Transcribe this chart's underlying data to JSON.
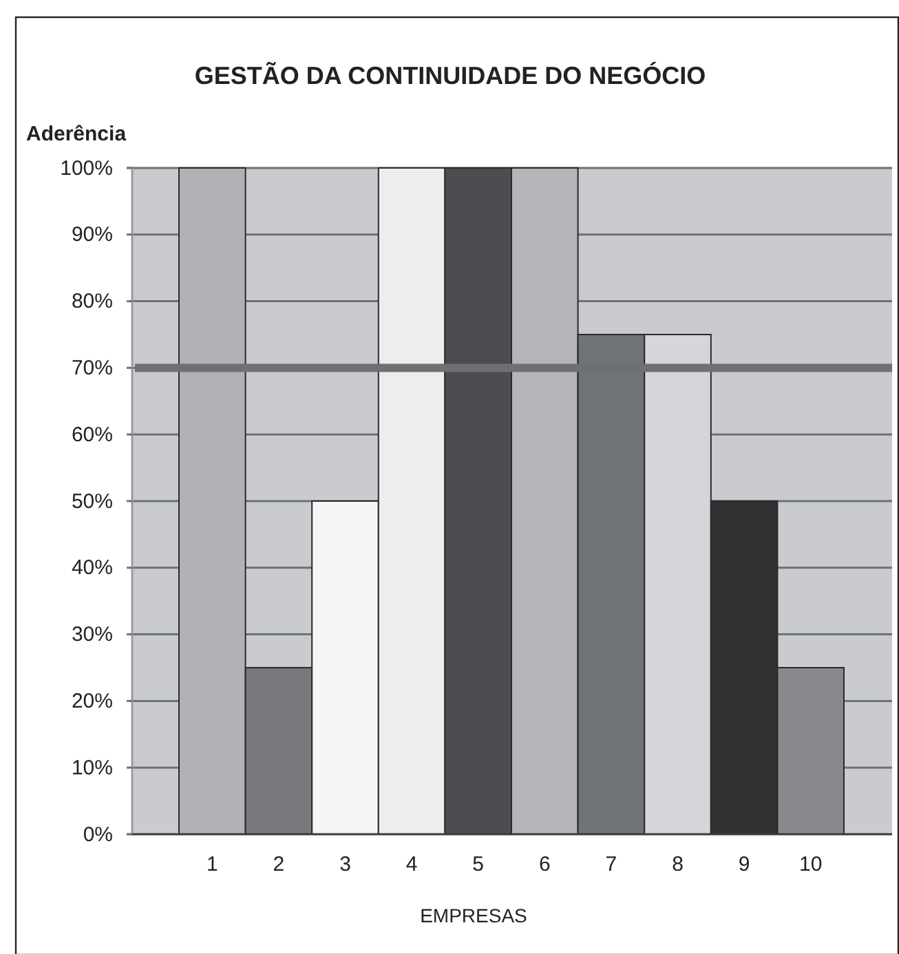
{
  "chart_data": {
    "type": "bar",
    "title": "GESTÃO DA CONTINUIDADE DO NEGÓCIO",
    "ylabel": "Aderência",
    "xlabel": "EMPRESAS",
    "categories": [
      "1",
      "2",
      "3",
      "4",
      "5",
      "6",
      "7",
      "8",
      "9",
      "10"
    ],
    "values": [
      100,
      25,
      50,
      100,
      100,
      100,
      75,
      75,
      50,
      25
    ],
    "colors": [
      "#b0b2b5",
      "#77797c",
      "#f5f5f5",
      "#ededee",
      "#4d4c50",
      "#b3b5b8",
      "#707376",
      "#d4d6d9",
      "#333032",
      "#87898c"
    ],
    "ylim": [
      0,
      100
    ],
    "yticks": [
      {
        "value": 0,
        "label": "0%"
      },
      {
        "value": 10,
        "label": "10%"
      },
      {
        "value": 20,
        "label": "20%"
      },
      {
        "value": 30,
        "label": "30%"
      },
      {
        "value": 40,
        "label": "40%"
      },
      {
        "value": 50,
        "label": "50%"
      },
      {
        "value": 60,
        "label": "60%"
      },
      {
        "value": 70,
        "label": "70%"
      },
      {
        "value": 80,
        "label": "80%"
      },
      {
        "value": 90,
        "label": "90%"
      },
      {
        "value": 100,
        "label": "100%"
      }
    ],
    "grid": "y",
    "ref_lines": [
      {
        "axis": "y",
        "value": 70,
        "color": "#6e7073"
      }
    ]
  }
}
